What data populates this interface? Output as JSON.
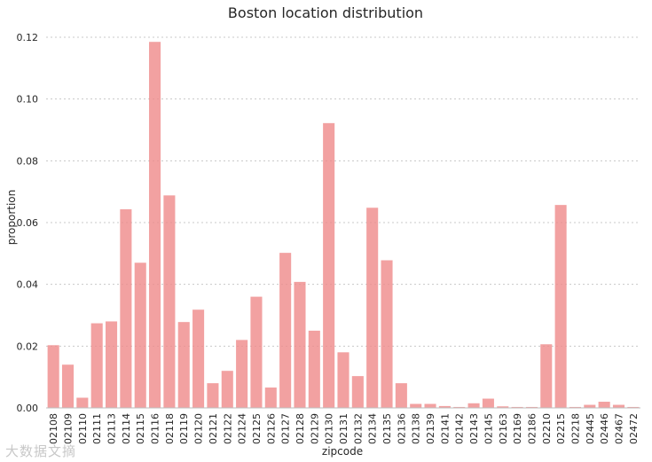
{
  "chart_data": {
    "type": "bar",
    "title": "Boston location distribution",
    "xlabel": "zipcode",
    "ylabel": "proportion",
    "ylim": [
      0,
      0.12
    ],
    "yticks": [
      "0.00",
      "0.02",
      "0.04",
      "0.06",
      "0.08",
      "0.10",
      "0.12"
    ],
    "grid": "horizontal dotted",
    "bar_color": "#ef8a8a",
    "categories": [
      "02108",
      "02109",
      "02110",
      "02111",
      "02113",
      "02114",
      "02115",
      "02116",
      "02118",
      "02119",
      "02120",
      "02121",
      "02122",
      "02124",
      "02125",
      "02126",
      "02127",
      "02128",
      "02129",
      "02130",
      "02131",
      "02132",
      "02134",
      "02135",
      "02136",
      "02138",
      "02139",
      "02141",
      "02142",
      "02143",
      "02145",
      "02163",
      "02169",
      "02186",
      "02210",
      "02215",
      "02218",
      "02445",
      "02446",
      "02467",
      "02472"
    ],
    "values": [
      0.0203,
      0.014,
      0.0033,
      0.0274,
      0.028,
      0.0643,
      0.047,
      0.1185,
      0.0688,
      0.0278,
      0.0318,
      0.008,
      0.012,
      0.022,
      0.036,
      0.0066,
      0.0502,
      0.0408,
      0.025,
      0.0922,
      0.018,
      0.0103,
      0.0648,
      0.0478,
      0.008,
      0.0013,
      0.0013,
      0.0006,
      0.0003,
      0.0015,
      0.003,
      0.0005,
      0.0003,
      0.0003,
      0.0206,
      0.0657,
      0.0003,
      0.001,
      0.002,
      0.001,
      0.0003
    ]
  },
  "watermark": "大数据文摘"
}
